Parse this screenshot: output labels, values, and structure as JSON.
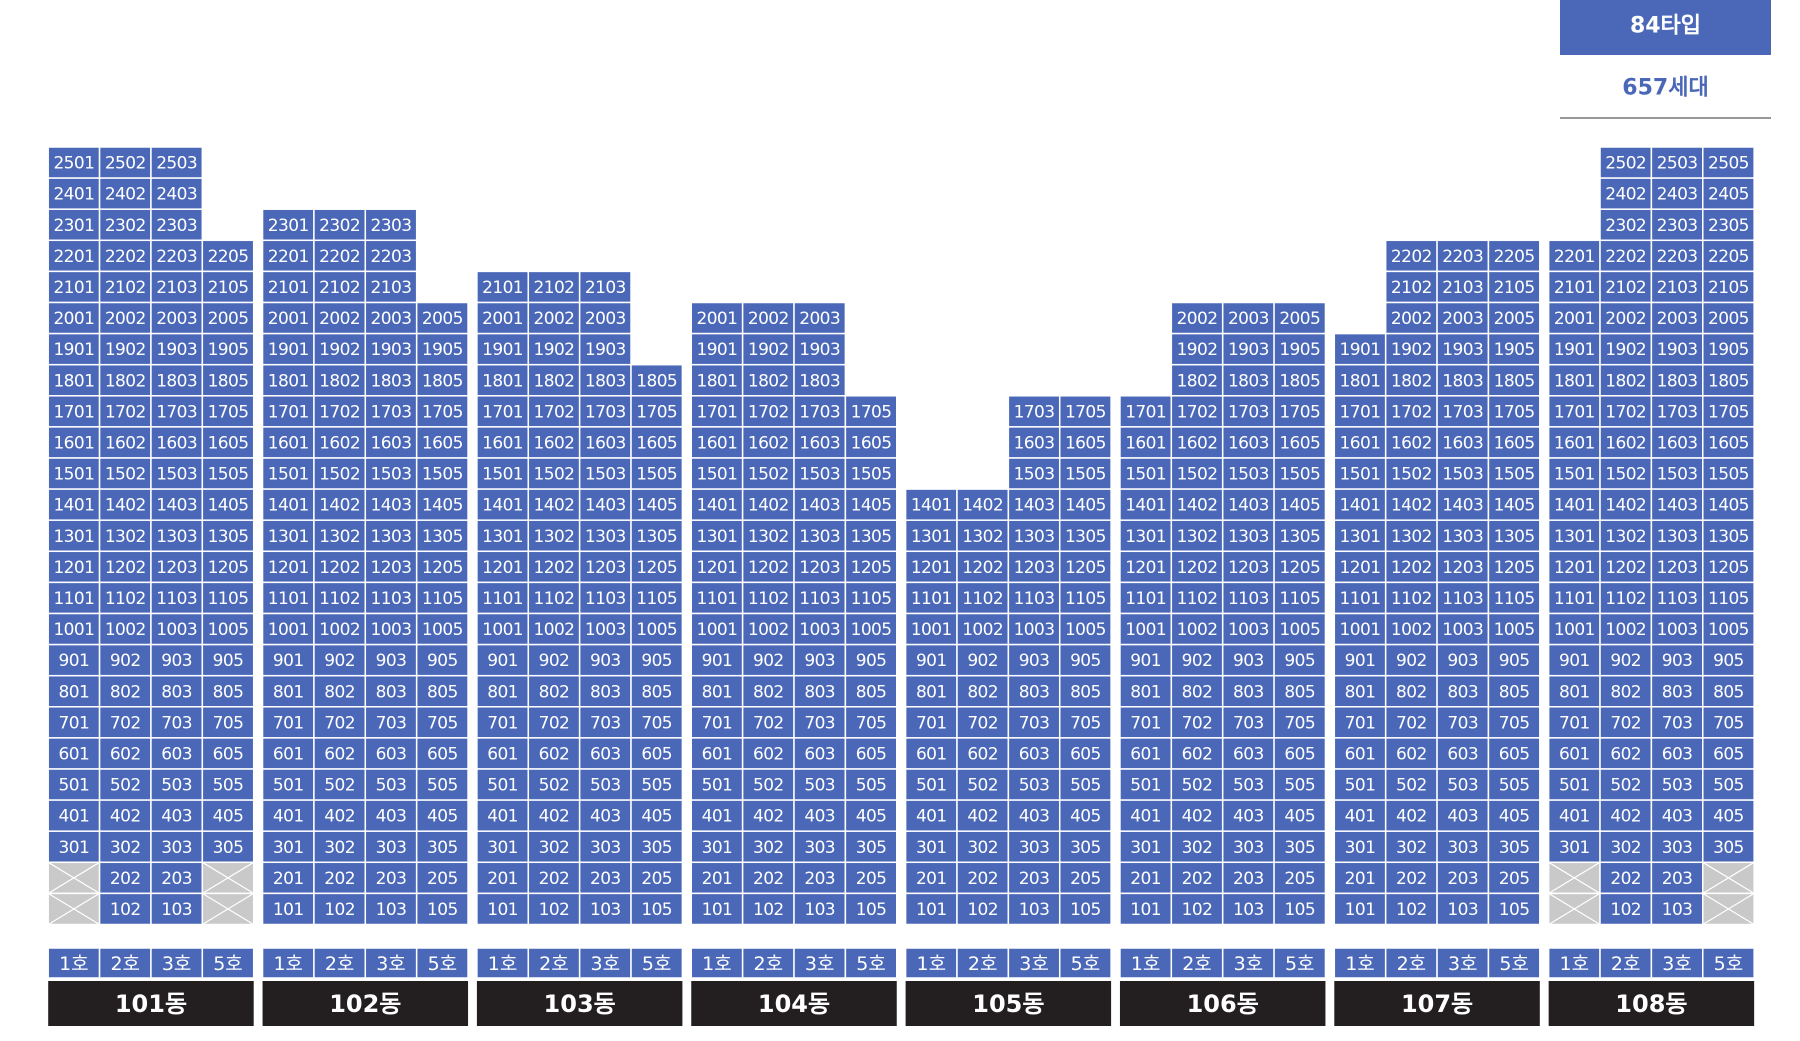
{
  "badge": {
    "type": "84타입",
    "count": "657세대"
  },
  "buildings": [
    {
      "name": "101동",
      "lines": [
        "1호",
        "2호",
        "3호",
        "5호"
      ],
      "rows": [
        [
          "2501",
          "2502",
          "2503",
          null
        ],
        [
          "2401",
          "2402",
          "2403",
          null
        ],
        [
          "2301",
          "2302",
          "2303",
          null
        ],
        [
          "2201",
          "2202",
          "2203",
          "2205"
        ],
        [
          "2101",
          "2102",
          "2103",
          "2105"
        ],
        [
          "2001",
          "2002",
          "2003",
          "2005"
        ],
        [
          "1901",
          "1902",
          "1903",
          "1905"
        ],
        [
          "1801",
          "1802",
          "1803",
          "1805"
        ],
        [
          "1701",
          "1702",
          "1703",
          "1705"
        ],
        [
          "1601",
          "1602",
          "1603",
          "1605"
        ],
        [
          "1501",
          "1502",
          "1503",
          "1505"
        ],
        [
          "1401",
          "1402",
          "1403",
          "1405"
        ],
        [
          "1301",
          "1302",
          "1303",
          "1305"
        ],
        [
          "1201",
          "1202",
          "1203",
          "1205"
        ],
        [
          "1101",
          "1102",
          "1103",
          "1105"
        ],
        [
          "1001",
          "1002",
          "1003",
          "1005"
        ],
        [
          "901",
          "902",
          "903",
          "905"
        ],
        [
          "801",
          "802",
          "803",
          "805"
        ],
        [
          "701",
          "702",
          "703",
          "705"
        ],
        [
          "601",
          "602",
          "603",
          "605"
        ],
        [
          "501",
          "502",
          "503",
          "505"
        ],
        [
          "401",
          "402",
          "403",
          "405"
        ],
        [
          "301",
          "302",
          "303",
          "305"
        ],
        [
          null,
          "202",
          "203",
          null
        ],
        [
          null,
          "102",
          "103",
          null
        ]
      ]
    },
    {
      "name": "102동",
      "lines": [
        "1호",
        "2호",
        "3호",
        "5호"
      ],
      "rows": [
        [
          "2301",
          "2302",
          "2303",
          null
        ],
        [
          "2201",
          "2202",
          "2203",
          null
        ],
        [
          "2101",
          "2102",
          "2103",
          null
        ],
        [
          "2001",
          "2002",
          "2003",
          "2005"
        ],
        [
          "1901",
          "1902",
          "1903",
          "1905"
        ],
        [
          "1801",
          "1802",
          "1803",
          "1805"
        ],
        [
          "1701",
          "1702",
          "1703",
          "1705"
        ],
        [
          "1601",
          "1602",
          "1603",
          "1605"
        ],
        [
          "1501",
          "1502",
          "1503",
          "1505"
        ],
        [
          "1401",
          "1402",
          "1403",
          "1405"
        ],
        [
          "1301",
          "1302",
          "1303",
          "1305"
        ],
        [
          "1201",
          "1202",
          "1203",
          "1205"
        ],
        [
          "1101",
          "1102",
          "1103",
          "1105"
        ],
        [
          "1001",
          "1002",
          "1003",
          "1005"
        ],
        [
          "901",
          "902",
          "903",
          "905"
        ],
        [
          "801",
          "802",
          "803",
          "805"
        ],
        [
          "701",
          "702",
          "703",
          "705"
        ],
        [
          "601",
          "602",
          "603",
          "605"
        ],
        [
          "501",
          "502",
          "503",
          "505"
        ],
        [
          "401",
          "402",
          "403",
          "405"
        ],
        [
          "301",
          "302",
          "303",
          "305"
        ],
        [
          "201",
          "202",
          "203",
          "205"
        ],
        [
          "101",
          "102",
          "103",
          "105"
        ]
      ]
    },
    {
      "name": "103동",
      "lines": [
        "1호",
        "2호",
        "3호",
        "5호"
      ],
      "rows": [
        [
          "2101",
          "2102",
          "2103",
          null
        ],
        [
          "2001",
          "2002",
          "2003",
          null
        ],
        [
          "1901",
          "1902",
          "1903",
          null
        ],
        [
          "1801",
          "1802",
          "1803",
          "1805"
        ],
        [
          "1701",
          "1702",
          "1703",
          "1705"
        ],
        [
          "1601",
          "1602",
          "1603",
          "1605"
        ],
        [
          "1501",
          "1502",
          "1503",
          "1505"
        ],
        [
          "1401",
          "1402",
          "1403",
          "1405"
        ],
        [
          "1301",
          "1302",
          "1303",
          "1305"
        ],
        [
          "1201",
          "1202",
          "1203",
          "1205"
        ],
        [
          "1101",
          "1102",
          "1103",
          "1105"
        ],
        [
          "1001",
          "1002",
          "1003",
          "1005"
        ],
        [
          "901",
          "902",
          "903",
          "905"
        ],
        [
          "801",
          "802",
          "803",
          "805"
        ],
        [
          "701",
          "702",
          "703",
          "705"
        ],
        [
          "601",
          "602",
          "603",
          "605"
        ],
        [
          "501",
          "502",
          "503",
          "505"
        ],
        [
          "401",
          "402",
          "403",
          "405"
        ],
        [
          "301",
          "302",
          "303",
          "305"
        ],
        [
          "201",
          "202",
          "203",
          "205"
        ],
        [
          "101",
          "102",
          "103",
          "105"
        ]
      ]
    },
    {
      "name": "104동",
      "lines": [
        "1호",
        "2호",
        "3호",
        "5호"
      ],
      "rows": [
        [
          "2001",
          "2002",
          "2003",
          null
        ],
        [
          "1901",
          "1902",
          "1903",
          null
        ],
        [
          "1801",
          "1802",
          "1803",
          null
        ],
        [
          "1701",
          "1702",
          "1703",
          "1705"
        ],
        [
          "1601",
          "1602",
          "1603",
          "1605"
        ],
        [
          "1501",
          "1502",
          "1503",
          "1505"
        ],
        [
          "1401",
          "1402",
          "1403",
          "1405"
        ],
        [
          "1301",
          "1302",
          "1303",
          "1305"
        ],
        [
          "1201",
          "1202",
          "1203",
          "1205"
        ],
        [
          "1101",
          "1102",
          "1103",
          "1105"
        ],
        [
          "1001",
          "1002",
          "1003",
          "1005"
        ],
        [
          "901",
          "902",
          "903",
          "905"
        ],
        [
          "801",
          "802",
          "803",
          "805"
        ],
        [
          "701",
          "702",
          "703",
          "705"
        ],
        [
          "601",
          "602",
          "603",
          "605"
        ],
        [
          "501",
          "502",
          "503",
          "505"
        ],
        [
          "401",
          "402",
          "403",
          "405"
        ],
        [
          "301",
          "302",
          "303",
          "305"
        ],
        [
          "201",
          "202",
          "203",
          "205"
        ],
        [
          "101",
          "102",
          "103",
          "105"
        ]
      ]
    },
    {
      "name": "105동",
      "lines": [
        "1호",
        "2호",
        "3호",
        "5호"
      ],
      "rows": [
        [
          null,
          null,
          "1703",
          "1705"
        ],
        [
          null,
          null,
          "1603",
          "1605"
        ],
        [
          null,
          null,
          "1503",
          "1505"
        ],
        [
          "1401",
          "1402",
          "1403",
          "1405"
        ],
        [
          "1301",
          "1302",
          "1303",
          "1305"
        ],
        [
          "1201",
          "1202",
          "1203",
          "1205"
        ],
        [
          "1101",
          "1102",
          "1103",
          "1105"
        ],
        [
          "1001",
          "1002",
          "1003",
          "1005"
        ],
        [
          "901",
          "902",
          "903",
          "905"
        ],
        [
          "801",
          "802",
          "803",
          "805"
        ],
        [
          "701",
          "702",
          "703",
          "705"
        ],
        [
          "601",
          "602",
          "603",
          "605"
        ],
        [
          "501",
          "502",
          "503",
          "505"
        ],
        [
          "401",
          "402",
          "403",
          "405"
        ],
        [
          "301",
          "302",
          "303",
          "305"
        ],
        [
          "201",
          "202",
          "203",
          "205"
        ],
        [
          "101",
          "102",
          "103",
          "105"
        ]
      ]
    },
    {
      "name": "106동",
      "lines": [
        "1호",
        "2호",
        "3호",
        "5호"
      ],
      "rows": [
        [
          null,
          "2002",
          "2003",
          "2005"
        ],
        [
          null,
          "1902",
          "1903",
          "1905"
        ],
        [
          null,
          "1802",
          "1803",
          "1805"
        ],
        [
          "1701",
          "1702",
          "1703",
          "1705"
        ],
        [
          "1601",
          "1602",
          "1603",
          "1605"
        ],
        [
          "1501",
          "1502",
          "1503",
          "1505"
        ],
        [
          "1401",
          "1402",
          "1403",
          "1405"
        ],
        [
          "1301",
          "1302",
          "1303",
          "1305"
        ],
        [
          "1201",
          "1202",
          "1203",
          "1205"
        ],
        [
          "1101",
          "1102",
          "1103",
          "1105"
        ],
        [
          "1001",
          "1002",
          "1003",
          "1005"
        ],
        [
          "901",
          "902",
          "903",
          "905"
        ],
        [
          "801",
          "802",
          "803",
          "805"
        ],
        [
          "701",
          "702",
          "703",
          "705"
        ],
        [
          "601",
          "602",
          "603",
          "605"
        ],
        [
          "501",
          "502",
          "503",
          "505"
        ],
        [
          "401",
          "402",
          "403",
          "405"
        ],
        [
          "301",
          "302",
          "303",
          "305"
        ],
        [
          "201",
          "202",
          "203",
          "205"
        ],
        [
          "101",
          "102",
          "103",
          "105"
        ]
      ]
    },
    {
      "name": "107동",
      "lines": [
        "1호",
        "2호",
        "3호",
        "5호"
      ],
      "rows": [
        [
          null,
          "2202",
          "2203",
          "2205"
        ],
        [
          null,
          "2102",
          "2103",
          "2105"
        ],
        [
          null,
          "2002",
          "2003",
          "2005"
        ],
        [
          "1901",
          "1902",
          "1903",
          "1905"
        ],
        [
          "1801",
          "1802",
          "1803",
          "1805"
        ],
        [
          "1701",
          "1702",
          "1703",
          "1705"
        ],
        [
          "1601",
          "1602",
          "1603",
          "1605"
        ],
        [
          "1501",
          "1502",
          "1503",
          "1505"
        ],
        [
          "1401",
          "1402",
          "1403",
          "1405"
        ],
        [
          "1301",
          "1302",
          "1303",
          "1305"
        ],
        [
          "1201",
          "1202",
          "1203",
          "1205"
        ],
        [
          "1101",
          "1102",
          "1103",
          "1105"
        ],
        [
          "1001",
          "1002",
          "1003",
          "1005"
        ],
        [
          "901",
          "902",
          "903",
          "905"
        ],
        [
          "801",
          "802",
          "803",
          "805"
        ],
        [
          "701",
          "702",
          "703",
          "705"
        ],
        [
          "601",
          "602",
          "603",
          "605"
        ],
        [
          "501",
          "502",
          "503",
          "505"
        ],
        [
          "401",
          "402",
          "403",
          "405"
        ],
        [
          "301",
          "302",
          "303",
          "305"
        ],
        [
          "201",
          "202",
          "203",
          "205"
        ],
        [
          "101",
          "102",
          "103",
          "105"
        ]
      ]
    },
    {
      "name": "108동",
      "lines": [
        "1호",
        "2호",
        "3호",
        "5호"
      ],
      "rows": [
        [
          null,
          "2502",
          "2503",
          "2505"
        ],
        [
          null,
          "2402",
          "2403",
          "2405"
        ],
        [
          null,
          "2302",
          "2303",
          "2305"
        ],
        [
          "2201",
          "2202",
          "2203",
          "2205"
        ],
        [
          "2101",
          "2102",
          "2103",
          "2105"
        ],
        [
          "2001",
          "2002",
          "2003",
          "2005"
        ],
        [
          "1901",
          "1902",
          "1903",
          "1905"
        ],
        [
          "1801",
          "1802",
          "1803",
          "1805"
        ],
        [
          "1701",
          "1702",
          "1703",
          "1705"
        ],
        [
          "1601",
          "1602",
          "1603",
          "1605"
        ],
        [
          "1501",
          "1502",
          "1503",
          "1505"
        ],
        [
          "1401",
          "1402",
          "1403",
          "1405"
        ],
        [
          "1301",
          "1302",
          "1303",
          "1305"
        ],
        [
          "1201",
          "1202",
          "1203",
          "1205"
        ],
        [
          "1101",
          "1102",
          "1103",
          "1105"
        ],
        [
          "1001",
          "1002",
          "1003",
          "1005"
        ],
        [
          "901",
          "902",
          "903",
          "905"
        ],
        [
          "801",
          "802",
          "803",
          "805"
        ],
        [
          "701",
          "702",
          "703",
          "705"
        ],
        [
          "601",
          "602",
          "603",
          "605"
        ],
        [
          "501",
          "502",
          "503",
          "505"
        ],
        [
          "401",
          "402",
          "403",
          "405"
        ],
        [
          "301",
          "302",
          "303",
          "305"
        ],
        [
          null,
          "202",
          "203",
          null
        ],
        [
          null,
          "102",
          "103",
          null
        ]
      ]
    }
  ]
}
